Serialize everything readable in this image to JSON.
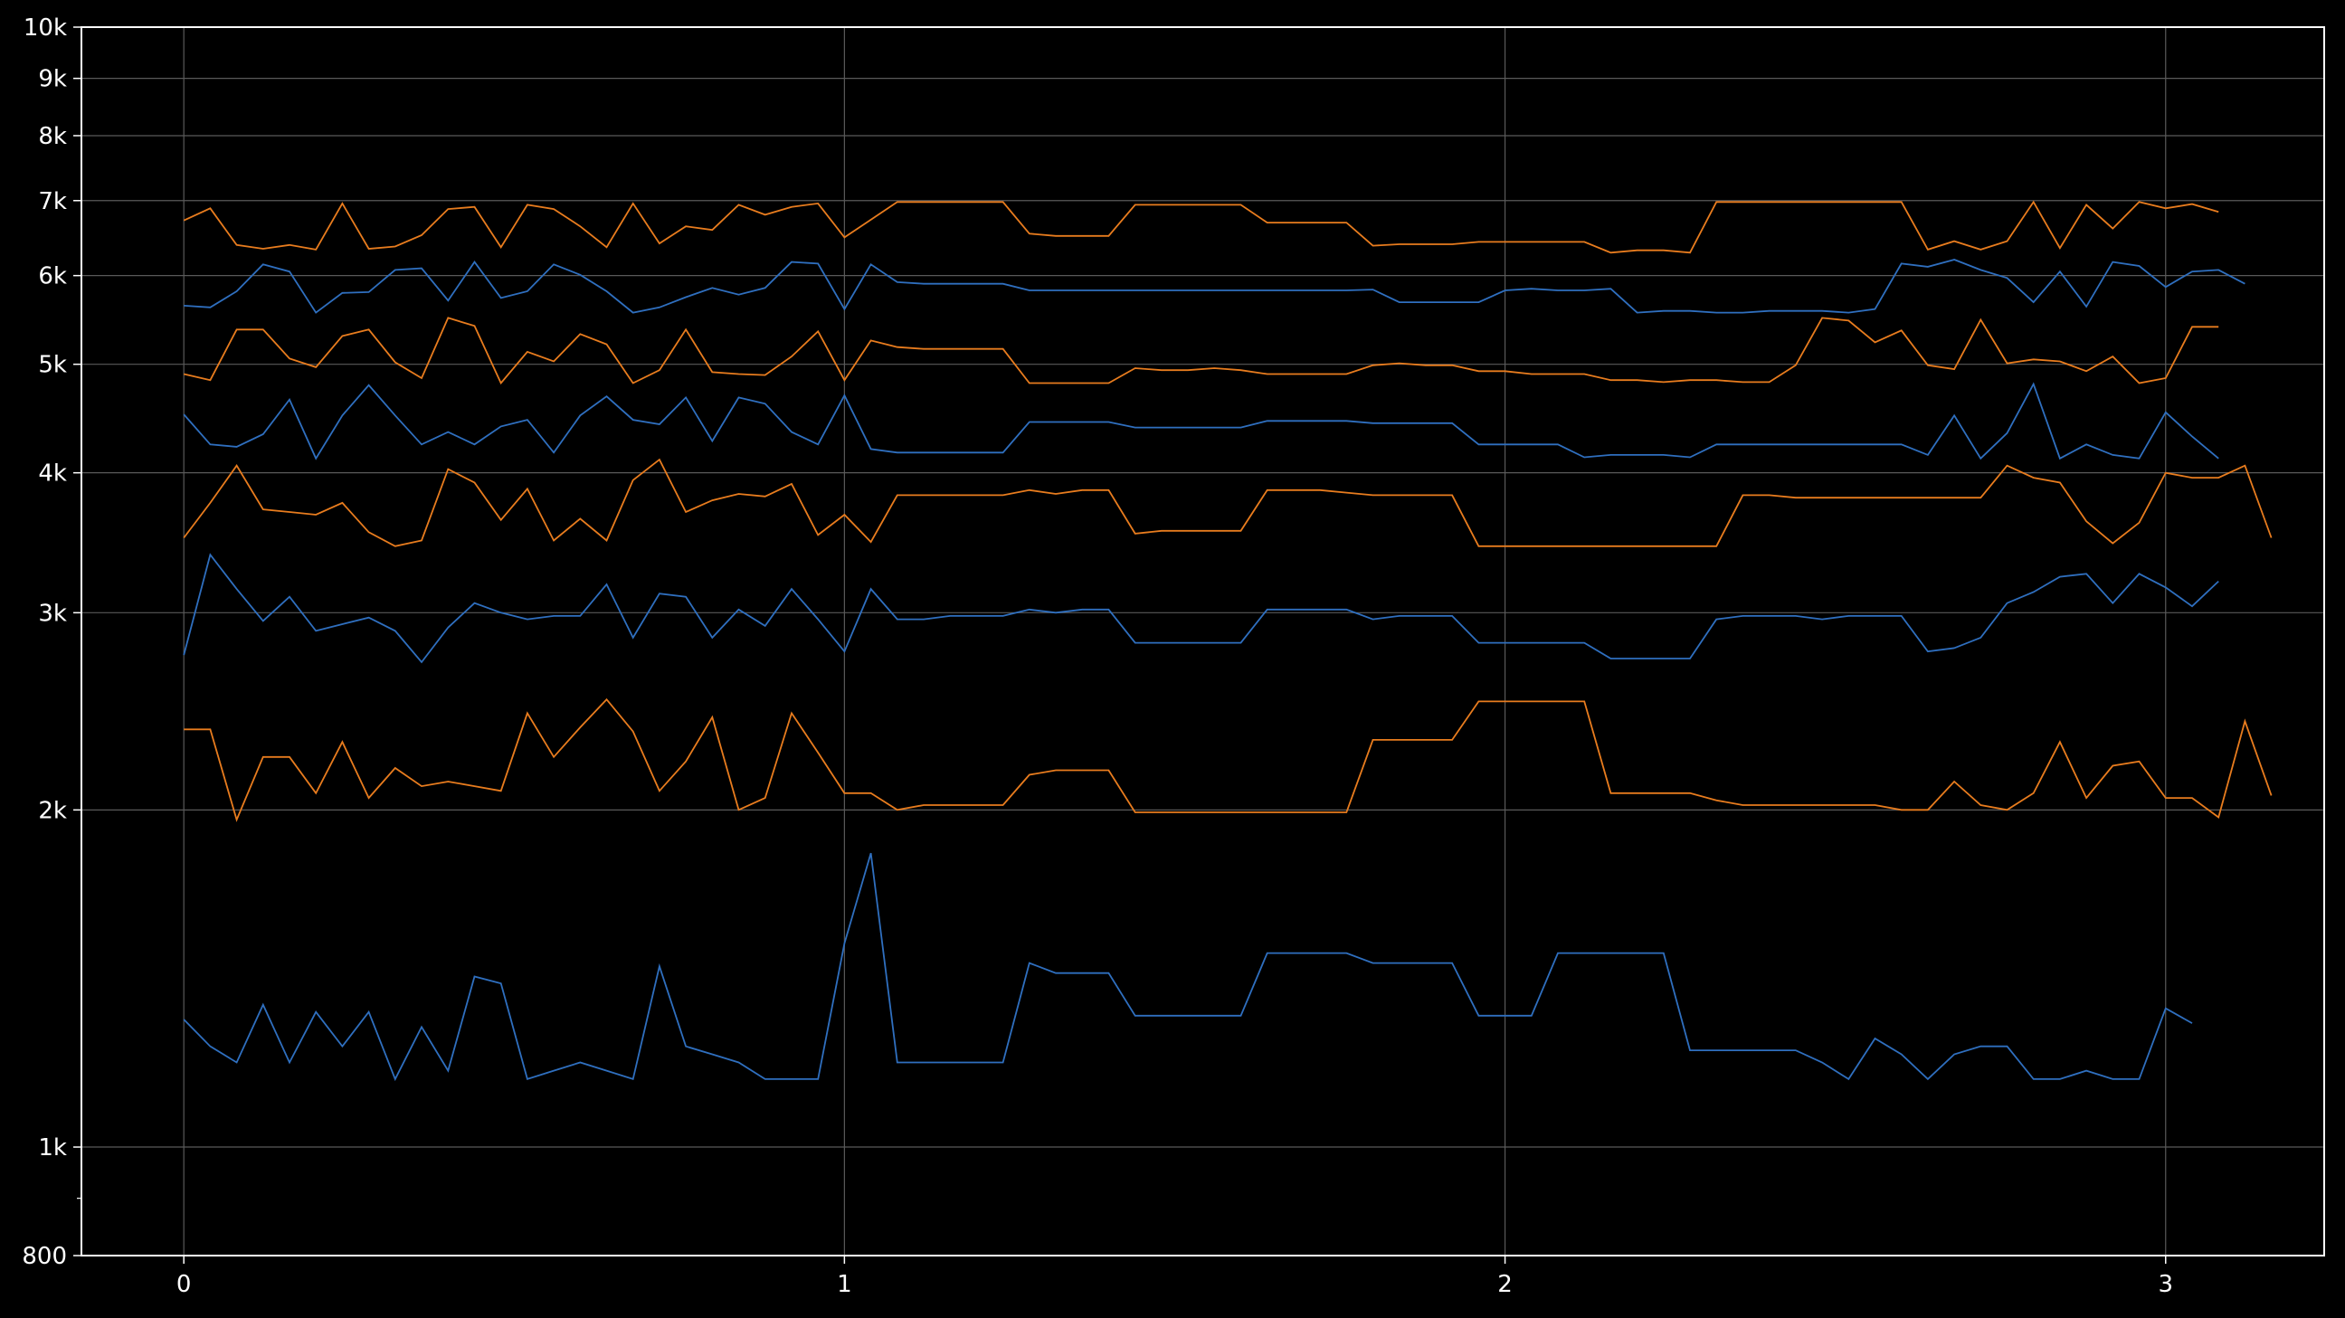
{
  "chart_data": {
    "type": "line",
    "title": "",
    "xlabel": "",
    "ylabel": "",
    "xlim": [
      -0.155,
      3.24
    ],
    "ylim": [
      800,
      10000
    ],
    "yscale": "log",
    "grid": true,
    "legend": "none",
    "x_ticks": [
      {
        "value": 0,
        "label": "0"
      },
      {
        "value": 1,
        "label": "1"
      },
      {
        "value": 2,
        "label": "2"
      },
      {
        "value": 3,
        "label": "3"
      }
    ],
    "y_ticks": [
      {
        "value": 800,
        "label": "800"
      },
      {
        "value": 1000,
        "label": "1k"
      },
      {
        "value": 2000,
        "label": "2k"
      },
      {
        "value": 3000,
        "label": "3k"
      },
      {
        "value": 4000,
        "label": "4k"
      },
      {
        "value": 5000,
        "label": "5k"
      },
      {
        "value": 6000,
        "label": "6k"
      },
      {
        "value": 7000,
        "label": "7k"
      },
      {
        "value": 8000,
        "label": "8k"
      },
      {
        "value": 9000,
        "label": "9k"
      },
      {
        "value": 10000,
        "label": "10k"
      }
    ],
    "y_minor_ticks": [
      900
    ],
    "x_start": 0,
    "x_step": 0.04,
    "series": [
      {
        "color": "#2f6fbf",
        "values": [
          1300,
          1230,
          1190,
          1340,
          1190,
          1320,
          1230,
          1320,
          1150,
          1280,
          1170,
          1420,
          1400,
          1150,
          1170,
          1190,
          1170,
          1150,
          1450,
          1230,
          1210,
          1190,
          1150,
          1150,
          1150,
          1520,
          1830,
          1190,
          1190,
          1190,
          1190,
          1190,
          1460,
          1430,
          1430,
          1430,
          1310,
          1310,
          1310,
          1310,
          1310,
          1490,
          1490,
          1490,
          1490,
          1460,
          1460,
          1460,
          1460,
          1310,
          1310,
          1310,
          1490,
          1490,
          1490,
          1490,
          1490,
          1220,
          1220,
          1220,
          1220,
          1220,
          1190,
          1150,
          1250,
          1210,
          1150,
          1210,
          1230,
          1230,
          1150,
          1150,
          1170,
          1150,
          1150,
          1330,
          1290
        ]
      },
      {
        "color": "#2f6fbf",
        "values": [
          2750,
          3380,
          3150,
          2950,
          3100,
          2890,
          2930,
          2970,
          2890,
          2710,
          2910,
          3060,
          3000,
          2960,
          2980,
          2980,
          3180,
          2850,
          3120,
          3100,
          2850,
          3020,
          2920,
          3150,
          2960,
          2770,
          3150,
          2960,
          2960,
          2980,
          2980,
          2980,
          3020,
          3000,
          3020,
          3020,
          2820,
          2820,
          2820,
          2820,
          2820,
          3020,
          3020,
          3020,
          3020,
          2960,
          2980,
          2980,
          2980,
          2820,
          2820,
          2820,
          2820,
          2820,
          2730,
          2730,
          2730,
          2730,
          2960,
          2980,
          2980,
          2980,
          2960,
          2980,
          2980,
          2980,
          2770,
          2790,
          2850,
          3060,
          3130,
          3230,
          3250,
          3060,
          3250,
          3160,
          3040,
          3200
        ]
      },
      {
        "color": "#2f6fbf",
        "values": [
          4510,
          4240,
          4220,
          4330,
          4650,
          4120,
          4500,
          4790,
          4500,
          4240,
          4350,
          4240,
          4400,
          4460,
          4170,
          4500,
          4680,
          4460,
          4420,
          4670,
          4270,
          4670,
          4610,
          4350,
          4240,
          4690,
          4200,
          4170,
          4170,
          4170,
          4170,
          4170,
          4440,
          4440,
          4440,
          4440,
          4390,
          4390,
          4390,
          4390,
          4390,
          4450,
          4450,
          4450,
          4450,
          4430,
          4430,
          4430,
          4430,
          4240,
          4240,
          4240,
          4240,
          4130,
          4150,
          4150,
          4150,
          4130,
          4240,
          4240,
          4240,
          4240,
          4240,
          4240,
          4240,
          4240,
          4150,
          4500,
          4120,
          4340,
          4800,
          4120,
          4240,
          4150,
          4120,
          4530,
          4310,
          4120
        ]
      },
      {
        "color": "#2f6fbf",
        "values": [
          5640,
          5620,
          5810,
          6140,
          6050,
          5560,
          5790,
          5800,
          6070,
          6090,
          5700,
          6170,
          5730,
          5810,
          6140,
          6010,
          5810,
          5560,
          5620,
          5740,
          5850,
          5770,
          5850,
          6170,
          6150,
          5600,
          6140,
          5920,
          5900,
          5900,
          5900,
          5900,
          5820,
          5820,
          5820,
          5820,
          5820,
          5820,
          5820,
          5820,
          5820,
          5820,
          5820,
          5820,
          5820,
          5830,
          5680,
          5680,
          5680,
          5680,
          5820,
          5840,
          5820,
          5820,
          5840,
          5560,
          5580,
          5580,
          5560,
          5560,
          5580,
          5580,
          5580,
          5560,
          5600,
          6150,
          6110,
          6200,
          6070,
          5970,
          5680,
          6050,
          5630,
          6170,
          6120,
          5860,
          6050,
          6070,
          5900
        ]
      },
      {
        "color": "#e87c1e",
        "values": [
          2360,
          2360,
          1960,
          2230,
          2230,
          2070,
          2300,
          2050,
          2180,
          2100,
          2120,
          2100,
          2080,
          2440,
          2230,
          2370,
          2510,
          2350,
          2080,
          2210,
          2420,
          2000,
          2050,
          2440,
          2250,
          2070,
          2070,
          2000,
          2020,
          2020,
          2020,
          2020,
          2150,
          2170,
          2170,
          2170,
          1990,
          1990,
          1990,
          1990,
          1990,
          1990,
          1990,
          1990,
          1990,
          2310,
          2310,
          2310,
          2310,
          2500,
          2500,
          2500,
          2500,
          2500,
          2070,
          2070,
          2070,
          2070,
          2040,
          2020,
          2020,
          2020,
          2020,
          2020,
          2020,
          2000,
          2000,
          2120,
          2020,
          2000,
          2070,
          2300,
          2050,
          2190,
          2210,
          2050,
          2050,
          1970,
          2400,
          2060
        ]
      },
      {
        "color": "#e87c1e",
        "values": [
          3500,
          3760,
          4060,
          3710,
          3690,
          3670,
          3760,
          3540,
          3440,
          3480,
          4030,
          3920,
          3630,
          3870,
          3480,
          3640,
          3480,
          3940,
          4110,
          3690,
          3780,
          3830,
          3810,
          3910,
          3520,
          3670,
          3470,
          3820,
          3820,
          3820,
          3820,
          3820,
          3860,
          3830,
          3860,
          3860,
          3530,
          3550,
          3550,
          3550,
          3550,
          3860,
          3860,
          3860,
          3840,
          3820,
          3820,
          3820,
          3820,
          3440,
          3440,
          3440,
          3440,
          3440,
          3440,
          3440,
          3440,
          3440,
          3440,
          3820,
          3820,
          3800,
          3800,
          3800,
          3800,
          3800,
          3800,
          3800,
          3800,
          4060,
          3960,
          3920,
          3620,
          3460,
          3610,
          4000,
          3960,
          3960,
          4060,
          3500
        ]
      },
      {
        "color": "#e87c1e",
        "values": [
          4900,
          4840,
          5370,
          5370,
          5060,
          4970,
          5300,
          5370,
          5020,
          4860,
          5500,
          5410,
          4810,
          5130,
          5030,
          5320,
          5210,
          4810,
          4940,
          5370,
          4920,
          4900,
          4890,
          5080,
          5350,
          4840,
          5250,
          5180,
          5160,
          5160,
          5160,
          5160,
          4810,
          4810,
          4810,
          4810,
          4960,
          4940,
          4940,
          4960,
          4940,
          4900,
          4900,
          4900,
          4900,
          4990,
          5010,
          4990,
          4990,
          4930,
          4930,
          4900,
          4900,
          4900,
          4840,
          4840,
          4820,
          4840,
          4840,
          4820,
          4820,
          4990,
          5500,
          5470,
          5230,
          5360,
          4990,
          4950,
          5480,
          5010,
          5050,
          5030,
          4930,
          5080,
          4810,
          4860,
          5400,
          5400
        ]
      },
      {
        "color": "#e87c1e",
        "values": [
          6720,
          6890,
          6390,
          6340,
          6390,
          6330,
          6960,
          6340,
          6370,
          6520,
          6880,
          6910,
          6360,
          6940,
          6880,
          6640,
          6360,
          6960,
          6410,
          6640,
          6590,
          6940,
          6800,
          6910,
          6960,
          6490,
          6730,
          6980,
          6980,
          6980,
          6980,
          6980,
          6540,
          6510,
          6510,
          6510,
          6940,
          6940,
          6940,
          6940,
          6940,
          6690,
          6690,
          6690,
          6690,
          6380,
          6400,
          6400,
          6400,
          6430,
          6430,
          6430,
          6430,
          6430,
          6290,
          6320,
          6320,
          6290,
          6980,
          6980,
          6980,
          6980,
          6980,
          6980,
          6980,
          6980,
          6330,
          6440,
          6330,
          6440,
          6980,
          6350,
          6940,
          6610,
          6980,
          6890,
          6950,
          6840
        ]
      }
    ]
  }
}
